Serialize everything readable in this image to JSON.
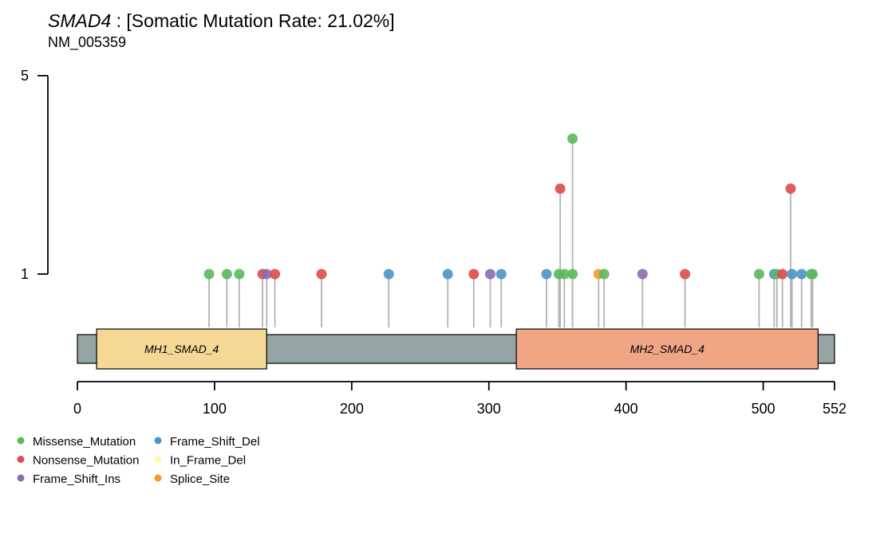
{
  "title": {
    "gene": "SMAD4",
    "rest": " : [Somatic Mutation Rate: 21.02%]"
  },
  "subtitle": "NM_005359",
  "chart_data": {
    "type": "lollipop",
    "protein_length": 552,
    "x_ticks": [
      0,
      100,
      200,
      300,
      400,
      500,
      552
    ],
    "y_ticks": [
      1,
      5
    ],
    "ylim": [
      0,
      5
    ],
    "backbone_color": "#95A5A6",
    "domains": [
      {
        "name": "MH1_SMAD_4",
        "start": 14,
        "end": 138,
        "color": "#F5D796"
      },
      {
        "name": "MH2_SMAD_4",
        "start": 320,
        "end": 540,
        "color": "#F0A584"
      }
    ],
    "legend": [
      {
        "label": "Missense_Mutation",
        "color": "#5CB85C"
      },
      {
        "label": "Nonsense_Mutation",
        "color": "#E04A4A"
      },
      {
        "label": "Frame_Shift_Ins",
        "color": "#8C6BB1"
      },
      {
        "label": "Frame_Shift_Del",
        "color": "#4A95C8"
      },
      {
        "label": "In_Frame_Del",
        "color": "#FFF8B0"
      },
      {
        "label": "Splice_Site",
        "color": "#F39A2E"
      }
    ],
    "mutations": [
      {
        "pos": 96,
        "count": 1,
        "type": "Missense_Mutation"
      },
      {
        "pos": 109,
        "count": 1,
        "type": "Missense_Mutation"
      },
      {
        "pos": 118,
        "count": 1,
        "type": "Missense_Mutation"
      },
      {
        "pos": 135,
        "count": 1,
        "type": "Nonsense_Mutation"
      },
      {
        "pos": 138,
        "count": 1,
        "type": "Frame_Shift_Ins"
      },
      {
        "pos": 144,
        "count": 1,
        "type": "Nonsense_Mutation"
      },
      {
        "pos": 178,
        "count": 1,
        "type": "Nonsense_Mutation"
      },
      {
        "pos": 227,
        "count": 1,
        "type": "Frame_Shift_Del"
      },
      {
        "pos": 270,
        "count": 1,
        "type": "Frame_Shift_Del"
      },
      {
        "pos": 289,
        "count": 1,
        "type": "Nonsense_Mutation"
      },
      {
        "pos": 301,
        "count": 1,
        "type": "Frame_Shift_Ins"
      },
      {
        "pos": 309,
        "count": 1,
        "type": "Frame_Shift_Del"
      },
      {
        "pos": 342,
        "count": 1,
        "type": "Frame_Shift_Del"
      },
      {
        "pos": 351,
        "count": 1,
        "type": "Missense_Mutation"
      },
      {
        "pos": 352,
        "count": 2,
        "type": "Nonsense_Mutation"
      },
      {
        "pos": 355,
        "count": 1,
        "type": "Missense_Mutation"
      },
      {
        "pos": 361,
        "count": 3,
        "type": "Missense_Mutation"
      },
      {
        "pos": 361,
        "count": 1,
        "type": "Missense_Mutation"
      },
      {
        "pos": 380,
        "count": 1,
        "type": "Splice_Site"
      },
      {
        "pos": 384,
        "count": 1,
        "type": "Missense_Mutation"
      },
      {
        "pos": 412,
        "count": 1,
        "type": "Frame_Shift_Ins"
      },
      {
        "pos": 443,
        "count": 1,
        "type": "Nonsense_Mutation"
      },
      {
        "pos": 497,
        "count": 1,
        "type": "Missense_Mutation"
      },
      {
        "pos": 508,
        "count": 1,
        "type": "Frame_Shift_Del"
      },
      {
        "pos": 510,
        "count": 1,
        "type": "Missense_Mutation"
      },
      {
        "pos": 514,
        "count": 1,
        "type": "Nonsense_Mutation"
      },
      {
        "pos": 520,
        "count": 2,
        "type": "Nonsense_Mutation"
      },
      {
        "pos": 521,
        "count": 1,
        "type": "Frame_Shift_Del"
      },
      {
        "pos": 528,
        "count": 1,
        "type": "Frame_Shift_Del"
      },
      {
        "pos": 535,
        "count": 1,
        "type": "Missense_Mutation"
      },
      {
        "pos": 536,
        "count": 1,
        "type": "Missense_Mutation"
      }
    ]
  }
}
